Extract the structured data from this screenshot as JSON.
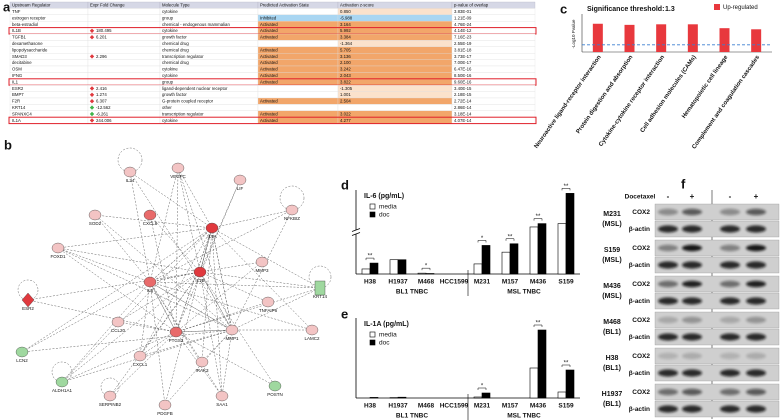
{
  "panel_labels": [
    "a",
    "b",
    "c",
    "d",
    "e",
    "f"
  ],
  "table": {
    "columns": [
      "Upstream Regulator",
      "Expr Fold Change",
      "Molecule Type",
      "Predicted Activation State",
      "Activation z-score",
      "p-value of overlap"
    ],
    "rows": [
      {
        "cells": [
          "TNF",
          null,
          "cytokine",
          null,
          "0.850",
          "3.83E-01"
        ],
        "highlight": false
      },
      {
        "cells": [
          "estrogen receptor",
          null,
          "group",
          "Inhibited",
          "-5.988",
          "1.21E-09"
        ],
        "highlight": false
      },
      {
        "cells": [
          "beta-estradiol",
          null,
          "chemical - endogenous mammalian",
          "Activated",
          "3.164",
          "4.76E-24"
        ],
        "highlight": false
      },
      {
        "cells": [
          "IL1B",
          "180.495",
          "cytokine",
          "Activated",
          "5.992",
          "4.14E-12"
        ],
        "highlight": true
      },
      {
        "cells": [
          "TGFB1",
          "6.201",
          "growth factor",
          "Activated",
          "3.384",
          "7.16E-23"
        ],
        "highlight": false
      },
      {
        "cells": [
          "dexamethasone",
          null,
          "chemical drug",
          null,
          "-1.364",
          "2.55E-19"
        ],
        "highlight": false
      },
      {
        "cells": [
          "lipopolysaccharide",
          null,
          "chemical drug",
          "Activated",
          "5.705",
          "3.81E-18"
        ],
        "highlight": false
      },
      {
        "cells": [
          "SMAD3",
          "2.296",
          "transcription regulator",
          "Activated",
          "3.136",
          "3.73E-17"
        ],
        "highlight": false
      },
      {
        "cells": [
          "decitabine",
          null,
          "chemical drug",
          "Activated",
          "2.100",
          "7.00E-17"
        ],
        "highlight": false
      },
      {
        "cells": [
          "OSM",
          null,
          "cytokine",
          "Activated",
          "3.242",
          "6.47E-16"
        ],
        "highlight": false
      },
      {
        "cells": [
          "IFNG",
          null,
          "cytokine",
          "Activated",
          "2.043",
          "8.50E-16"
        ],
        "highlight": false
      },
      {
        "cells": [
          "IL1",
          null,
          "group",
          "Activated",
          "3.822",
          "9.60E-16"
        ],
        "highlight": true
      },
      {
        "cells": [
          "ESR2",
          "2.416",
          "ligand-dependent nuclear receptor",
          null,
          "-1.305",
          "3.40E-15"
        ],
        "highlight": false
      },
      {
        "cells": [
          "BMP7",
          "1.274",
          "growth factor",
          null,
          "1.001",
          "2.18E-15"
        ],
        "highlight": false
      },
      {
        "cells": [
          "F2R",
          "6.307",
          "G-protein coupled receptor",
          "Activated",
          "2.504",
          "2.72E-14"
        ],
        "highlight": false
      },
      {
        "cells": [
          "KRT14",
          "-12.562",
          "other",
          null,
          null,
          "2.86E-14"
        ],
        "highlight": false
      },
      {
        "cells": [
          "SPANXC4",
          "-6.261",
          "transcription regulator",
          "Activated",
          "3.022",
          "3.18E-14"
        ],
        "highlight": false
      },
      {
        "cells": [
          "IL1A",
          "244.006",
          "cytokine",
          "Activated",
          "4.277",
          "4.07E-14"
        ],
        "highlight": true
      }
    ]
  },
  "network": {
    "nodes": [
      {
        "label": "IL24",
        "color": "#f3c4c4"
      },
      {
        "label": "VEGFC",
        "color": "#f3c4c4"
      },
      {
        "label": "LIF",
        "color": "#f3c4c4"
      },
      {
        "label": "NFKBIZ",
        "color": "#f3c4c4"
      },
      {
        "label": "IL1A",
        "color": "#e0393e"
      },
      {
        "label": "CXCL8",
        "color": "#e86a6a"
      },
      {
        "label": "SOD2",
        "color": "#f3c4c4"
      },
      {
        "label": "FOXD1",
        "color": "#f3c4c4"
      },
      {
        "label": "ESR2",
        "color": "#e0393e"
      },
      {
        "label": "LCN2",
        "color": "#9fd89f"
      },
      {
        "label": "ALDH1A1",
        "color": "#9fd89f"
      },
      {
        "label": "SERPINB2",
        "color": "#f3c4c4"
      },
      {
        "label": "PDGFB",
        "color": "#f3c4c4"
      },
      {
        "label": "SAA1",
        "color": "#f3c4c4"
      },
      {
        "label": "POSTN",
        "color": "#9fd89f"
      },
      {
        "label": "LAMC2",
        "color": "#f3c4c4"
      },
      {
        "label": "KRT14",
        "color": "#9fd89f"
      },
      {
        "label": "MMP3",
        "color": "#f3c4c4"
      },
      {
        "label": "IL1B",
        "color": "#e0393e"
      },
      {
        "label": "IL6",
        "color": "#e86a6a"
      },
      {
        "label": "CCL20",
        "color": "#f3c4c4"
      },
      {
        "label": "PTGS2",
        "color": "#e86a6a"
      },
      {
        "label": "MMP1",
        "color": "#f3c4c4"
      },
      {
        "label": "TNFAIP6",
        "color": "#f3c4c4"
      },
      {
        "label": "IRAK3",
        "color": "#f3c4c4"
      },
      {
        "label": "CXCL1",
        "color": "#f3c4c4"
      }
    ]
  },
  "chart_data": [
    {
      "type": "bar",
      "title": "Significance threshold:",
      "threshold": 1.3,
      "ylabel": "-Log10 Pvalue",
      "categories": [
        "Neuroactive ligand-receptor interaction",
        "Protein digestion and absorption",
        "Cytokine-cytokine receptor interaction",
        "Cell adhesion molecules (CAMs)",
        "Hematopoietic cell lineage",
        "Complement and coagulation cascades"
      ],
      "series": [
        {
          "name": "Up-regulated",
          "color": "#e8383d",
          "values": [
            5.1,
            4.9,
            5.0,
            5.0,
            4.3,
            4.1
          ]
        }
      ],
      "ylim": [
        0,
        6.5
      ],
      "legend": "top-right"
    },
    {
      "type": "grouped-bar",
      "title": "IL-6 (pg/mL)",
      "categories": [
        "H38",
        "H1937",
        "M468",
        "HCC1599",
        "M231",
        "M157",
        "M436",
        "S159"
      ],
      "series": [
        {
          "name": "media",
          "color": "#ffffff",
          "values": [
            3,
            8.5,
            0.5,
            0,
            6,
            13,
            28,
            30
          ]
        },
        {
          "name": "doc",
          "color": "#000000",
          "values": [
            6.5,
            8.5,
            0.3,
            0,
            17,
            18,
            30,
            48
          ]
        }
      ],
      "annotations": [
        "**",
        null,
        "*",
        null,
        "*",
        "**",
        "**",
        "**"
      ],
      "groups": [
        {
          "label": "BL1 TNBC",
          "size": 4
        },
        {
          "label": "MSL TNBC",
          "size": 4
        }
      ],
      "ylim": [
        0,
        50
      ],
      "axis_break": true
    },
    {
      "type": "grouped-bar",
      "title": "IL-1A (pg/mL)",
      "categories": [
        "H38",
        "H1937",
        "M468",
        "HCC1599",
        "M231",
        "M157",
        "M436",
        "S159"
      ],
      "series": [
        {
          "name": "media",
          "color": "#ffffff",
          "values": [
            0,
            0.2,
            0,
            0,
            0.5,
            0,
            15,
            3
          ]
        },
        {
          "name": "doc",
          "color": "#000000",
          "values": [
            0.3,
            0.4,
            0,
            0,
            2.5,
            0,
            34,
            14
          ]
        }
      ],
      "annotations": [
        null,
        null,
        null,
        null,
        "*",
        null,
        "**",
        "**"
      ],
      "groups": [
        {
          "label": "BL1 TNBC",
          "size": 4
        },
        {
          "label": "MSL TNBC",
          "size": 4
        }
      ],
      "ylim": [
        0,
        40
      ],
      "axis_break": false
    }
  ],
  "blot": {
    "treatment": "Docetaxel",
    "lanes": [
      "-",
      "+",
      "-",
      "+"
    ],
    "rows": [
      {
        "cell": "M231",
        "subtype": "(MSL)",
        "proteins": [
          "COX2",
          "β-actin"
        ]
      },
      {
        "cell": "S159",
        "subtype": "(MSL)",
        "proteins": [
          "COX2",
          "β-actin"
        ]
      },
      {
        "cell": "M436",
        "subtype": "(MSL)",
        "proteins": [
          "COX2",
          "β-actin"
        ]
      },
      {
        "cell": "M468",
        "subtype": "(BL1)",
        "proteins": [
          "COX2",
          "β-actin"
        ]
      },
      {
        "cell": "H38",
        "subtype": "(BL1)",
        "proteins": [
          "COX2",
          "β-actin"
        ]
      },
      {
        "cell": "H1937",
        "subtype": "(BL1)",
        "proteins": [
          "COX2",
          "β-actin"
        ]
      }
    ]
  }
}
